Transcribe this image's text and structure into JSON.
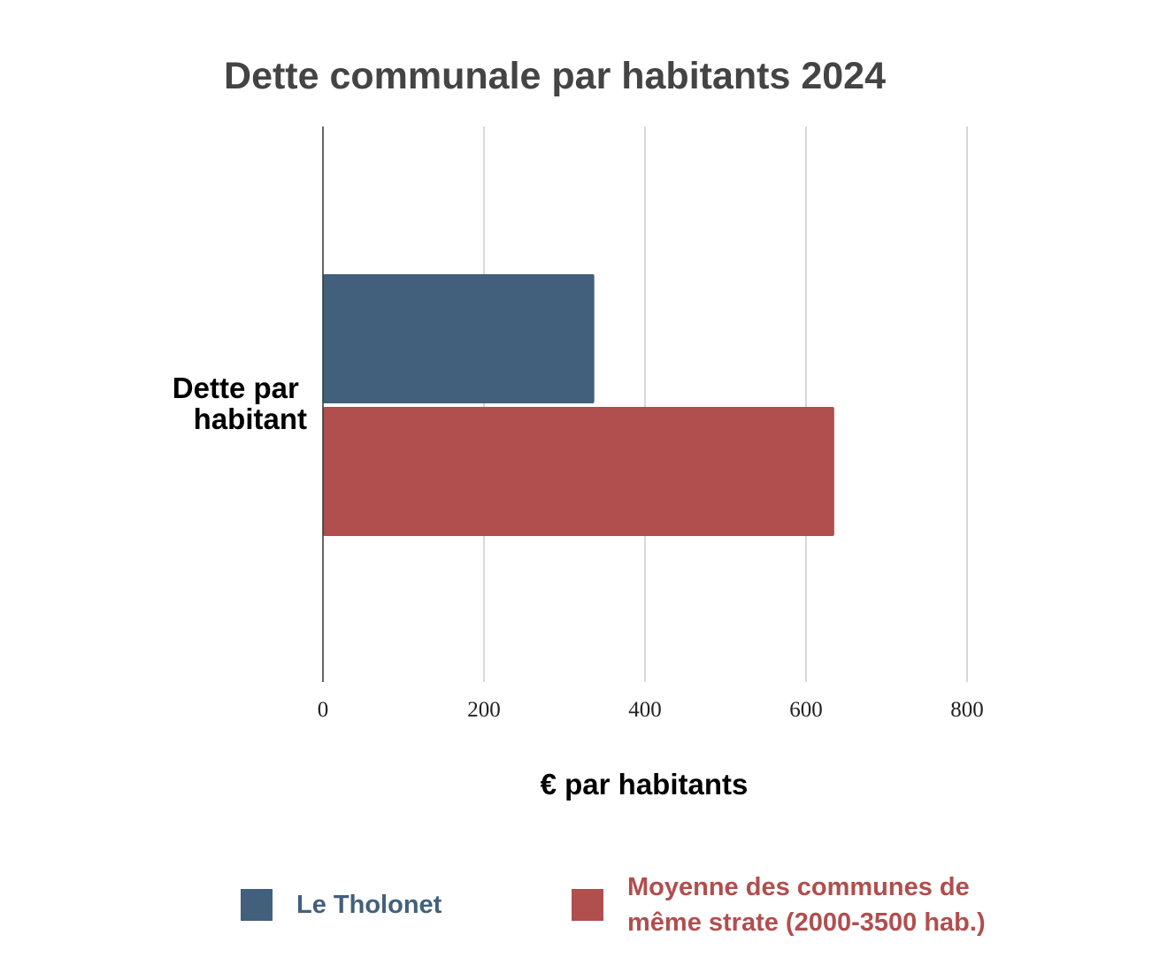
{
  "chart_data": {
    "type": "bar",
    "orientation": "horizontal",
    "title": "Dette communale par habitants 2024",
    "categories": [
      "Dette par habitant"
    ],
    "category_label_lines": [
      "Dette par",
      "habitant"
    ],
    "series": [
      {
        "name": "Le Tholonet",
        "values": [
          337
        ],
        "color": "#42607b"
      },
      {
        "name": "Moyenne des communes de même strate (2000-3500 hab.)",
        "values": [
          635
        ],
        "color": "#b14e4e"
      }
    ],
    "xlabel": "€ par habitants",
    "ylabel": "",
    "xlim": [
      0,
      800
    ],
    "xticks": [
      "0",
      "200",
      "400",
      "600",
      "800"
    ],
    "grid": true,
    "legend_position": "bottom",
    "legend_label_lines": [
      [
        "Le Tholonet"
      ],
      [
        "Moyenne des communes de",
        "même strate (2000-3500 hab.)"
      ]
    ]
  }
}
